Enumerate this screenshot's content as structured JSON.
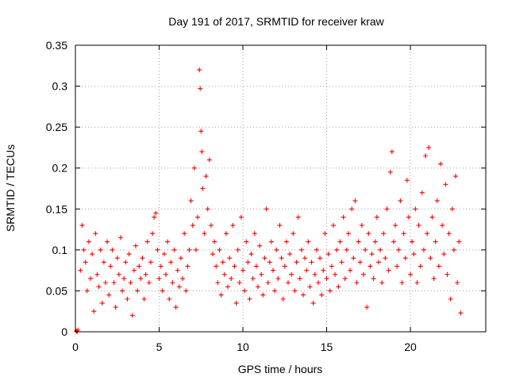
{
  "chart_data": {
    "type": "scatter",
    "title": "Day 191 of 2017, SRMTID for receiver kraw",
    "xlabel": "GPS time / hours",
    "ylabel": "SRMTID / TECUs",
    "xlim": [
      0,
      24.5
    ],
    "ylim": [
      0,
      0.35
    ],
    "xticks": [
      0,
      5,
      10,
      15,
      20
    ],
    "xtick_labels": [
      "0",
      "5",
      "10",
      "15",
      "20"
    ],
    "yticks": [
      0,
      0.05,
      0.1,
      0.15,
      0.2,
      0.25,
      0.3,
      0.35
    ],
    "ytick_labels": [
      "0",
      "0.05",
      "0.1",
      "0.15",
      "0.2",
      "0.25",
      "0.3",
      "0.35"
    ],
    "grid": true,
    "marker": "plus",
    "series": [
      {
        "name": "SRMTID",
        "color": "#ff0000",
        "points": [
          [
            0.05,
            0.001
          ],
          [
            0.1,
            0.0
          ],
          [
            0.15,
            0.002
          ],
          [
            0.3,
            0.075
          ],
          [
            0.4,
            0.13
          ],
          [
            0.5,
            0.1
          ],
          [
            0.6,
            0.085
          ],
          [
            0.7,
            0.05
          ],
          [
            0.8,
            0.11
          ],
          [
            0.9,
            0.065
          ],
          [
            1.0,
            0.095
          ],
          [
            1.1,
            0.025
          ],
          [
            1.2,
            0.12
          ],
          [
            1.3,
            0.07
          ],
          [
            1.4,
            0.055
          ],
          [
            1.5,
            0.1
          ],
          [
            1.6,
            0.035
          ],
          [
            1.7,
            0.085
          ],
          [
            1.8,
            0.06
          ],
          [
            1.9,
            0.11
          ],
          [
            2.0,
            0.045
          ],
          [
            2.1,
            0.08
          ],
          [
            2.2,
            0.1
          ],
          [
            2.3,
            0.06
          ],
          [
            2.4,
            0.03
          ],
          [
            2.5,
            0.09
          ],
          [
            2.6,
            0.07
          ],
          [
            2.7,
            0.115
          ],
          [
            2.8,
            0.05
          ],
          [
            2.9,
            0.065
          ],
          [
            3.0,
            0.085
          ],
          [
            3.1,
            0.04
          ],
          [
            3.2,
            0.095
          ],
          [
            3.3,
            0.06
          ],
          [
            3.4,
            0.02
          ],
          [
            3.5,
            0.075
          ],
          [
            3.6,
            0.105
          ],
          [
            3.7,
            0.05
          ],
          [
            3.8,
            0.08
          ],
          [
            3.9,
            0.065
          ],
          [
            4.0,
            0.09
          ],
          [
            4.1,
            0.04
          ],
          [
            4.2,
            0.07
          ],
          [
            4.3,
            0.11
          ],
          [
            4.4,
            0.06
          ],
          [
            4.5,
            0.085
          ],
          [
            4.6,
            0.12
          ],
          [
            4.7,
            0.14
          ],
          [
            4.8,
            0.145
          ],
          [
            4.9,
            0.1
          ],
          [
            5.0,
            0.065
          ],
          [
            5.1,
            0.08
          ],
          [
            5.2,
            0.05
          ],
          [
            5.3,
            0.095
          ],
          [
            5.4,
            0.07
          ],
          [
            5.5,
            0.11
          ],
          [
            5.6,
            0.04
          ],
          [
            5.7,
            0.085
          ],
          [
            5.8,
            0.06
          ],
          [
            5.9,
            0.1
          ],
          [
            6.0,
            0.03
          ],
          [
            6.1,
            0.075
          ],
          [
            6.2,
            0.055
          ],
          [
            6.3,
            0.09
          ],
          [
            6.4,
            0.065
          ],
          [
            6.5,
            0.12
          ],
          [
            6.6,
            0.05
          ],
          [
            6.7,
            0.08
          ],
          [
            6.8,
            0.1
          ],
          [
            6.9,
            0.16
          ],
          [
            7.0,
            0.13
          ],
          [
            7.1,
            0.2
          ],
          [
            7.2,
            0.1
          ],
          [
            7.3,
            0.14
          ],
          [
            7.4,
            0.32
          ],
          [
            7.45,
            0.297
          ],
          [
            7.5,
            0.245
          ],
          [
            7.55,
            0.22
          ],
          [
            7.6,
            0.175
          ],
          [
            7.7,
            0.12
          ],
          [
            7.8,
            0.19
          ],
          [
            7.9,
            0.15
          ],
          [
            8.0,
            0.21
          ],
          [
            8.1,
            0.13
          ],
          [
            8.2,
            0.095
          ],
          [
            8.3,
            0.11
          ],
          [
            8.4,
            0.08
          ],
          [
            8.5,
            0.06
          ],
          [
            8.6,
            0.1
          ],
          [
            8.7,
            0.045
          ],
          [
            8.8,
            0.085
          ],
          [
            8.9,
            0.07
          ],
          [
            9.0,
            0.12
          ],
          [
            9.1,
            0.055
          ],
          [
            9.2,
            0.09
          ],
          [
            9.3,
            0.065
          ],
          [
            9.4,
            0.13
          ],
          [
            9.5,
            0.08
          ],
          [
            9.6,
            0.035
          ],
          [
            9.7,
            0.1
          ],
          [
            9.8,
            0.06
          ],
          [
            9.9,
            0.14
          ],
          [
            10.0,
            0.075
          ],
          [
            10.1,
            0.05
          ],
          [
            10.2,
            0.11
          ],
          [
            10.3,
            0.085
          ],
          [
            10.4,
            0.04
          ],
          [
            10.5,
            0.095
          ],
          [
            10.6,
            0.065
          ],
          [
            10.7,
            0.12
          ],
          [
            10.8,
            0.08
          ],
          [
            10.9,
            0.055
          ],
          [
            11.0,
            0.105
          ],
          [
            11.1,
            0.07
          ],
          [
            11.2,
            0.045
          ],
          [
            11.3,
            0.09
          ],
          [
            11.4,
            0.15
          ],
          [
            11.5,
            0.06
          ],
          [
            11.6,
            0.085
          ],
          [
            11.7,
            0.11
          ],
          [
            11.8,
            0.075
          ],
          [
            11.9,
            0.05
          ],
          [
            12.0,
            0.1
          ],
          [
            12.1,
            0.065
          ],
          [
            12.2,
            0.13
          ],
          [
            12.3,
            0.09
          ],
          [
            12.4,
            0.04
          ],
          [
            12.5,
            0.08
          ],
          [
            12.6,
            0.11
          ],
          [
            12.7,
            0.06
          ],
          [
            12.8,
            0.095
          ],
          [
            12.9,
            0.07
          ],
          [
            13.0,
            0.12
          ],
          [
            13.1,
            0.05
          ],
          [
            13.2,
            0.085
          ],
          [
            13.3,
            0.14
          ],
          [
            13.4,
            0.065
          ],
          [
            13.5,
            0.1
          ],
          [
            13.6,
            0.045
          ],
          [
            13.7,
            0.09
          ],
          [
            13.8,
            0.075
          ],
          [
            13.9,
            0.11
          ],
          [
            14.0,
            0.055
          ],
          [
            14.1,
            0.085
          ],
          [
            14.2,
            0.035
          ],
          [
            14.3,
            0.07
          ],
          [
            14.4,
            0.1
          ],
          [
            14.5,
            0.06
          ],
          [
            14.6,
            0.09
          ],
          [
            14.7,
            0.045
          ],
          [
            14.8,
            0.075
          ],
          [
            14.9,
            0.12
          ],
          [
            15.0,
            0.065
          ],
          [
            15.1,
            0.095
          ],
          [
            15.2,
            0.05
          ],
          [
            15.3,
            0.08
          ],
          [
            15.4,
            0.13
          ],
          [
            15.5,
            0.07
          ],
          [
            15.6,
            0.1
          ],
          [
            15.7,
            0.055
          ],
          [
            15.8,
            0.11
          ],
          [
            15.9,
            0.085
          ],
          [
            16.0,
            0.14
          ],
          [
            16.1,
            0.065
          ],
          [
            16.2,
            0.1
          ],
          [
            16.3,
            0.12
          ],
          [
            16.4,
            0.075
          ],
          [
            16.5,
            0.15
          ],
          [
            16.6,
            0.09
          ],
          [
            16.7,
            0.16
          ],
          [
            16.8,
            0.06
          ],
          [
            16.9,
            0.11
          ],
          [
            17.0,
            0.085
          ],
          [
            17.1,
            0.13
          ],
          [
            17.2,
            0.07
          ],
          [
            17.3,
            0.1
          ],
          [
            17.4,
            0.03
          ],
          [
            17.5,
            0.12
          ],
          [
            17.6,
            0.08
          ],
          [
            17.7,
            0.095
          ],
          [
            17.8,
            0.065
          ],
          [
            17.9,
            0.11
          ],
          [
            18.0,
            0.14
          ],
          [
            18.1,
            0.085
          ],
          [
            18.2,
            0.1
          ],
          [
            18.3,
            0.06
          ],
          [
            18.4,
            0.12
          ],
          [
            18.5,
            0.09
          ],
          [
            18.6,
            0.15
          ],
          [
            18.7,
            0.075
          ],
          [
            18.8,
            0.195
          ],
          [
            18.9,
            0.22
          ],
          [
            19.0,
            0.11
          ],
          [
            19.1,
            0.13
          ],
          [
            19.2,
            0.08
          ],
          [
            19.3,
            0.1
          ],
          [
            19.4,
            0.16
          ],
          [
            19.5,
            0.06
          ],
          [
            19.6,
            0.12
          ],
          [
            19.7,
            0.09
          ],
          [
            19.8,
            0.185
          ],
          [
            19.9,
            0.14
          ],
          [
            20.0,
            0.07
          ],
          [
            20.1,
            0.11
          ],
          [
            20.2,
            0.095
          ],
          [
            20.3,
            0.15
          ],
          [
            20.4,
            0.06
          ],
          [
            20.5,
            0.13
          ],
          [
            20.6,
            0.08
          ],
          [
            20.7,
            0.17
          ],
          [
            20.8,
            0.1
          ],
          [
            20.9,
            0.215
          ],
          [
            21.0,
            0.12
          ],
          [
            21.1,
            0.225
          ],
          [
            21.2,
            0.09
          ],
          [
            21.3,
            0.14
          ],
          [
            21.4,
            0.065
          ],
          [
            21.5,
            0.11
          ],
          [
            21.6,
            0.16
          ],
          [
            21.7,
            0.08
          ],
          [
            21.8,
            0.205
          ],
          [
            21.9,
            0.13
          ],
          [
            22.0,
            0.095
          ],
          [
            22.1,
            0.18
          ],
          [
            22.2,
            0.07
          ],
          [
            22.3,
            0.12
          ],
          [
            22.4,
            0.04
          ],
          [
            22.5,
            0.15
          ],
          [
            22.6,
            0.1
          ],
          [
            22.7,
            0.19
          ],
          [
            22.8,
            0.06
          ],
          [
            22.9,
            0.11
          ],
          [
            23.0,
            0.023
          ]
        ]
      }
    ]
  }
}
